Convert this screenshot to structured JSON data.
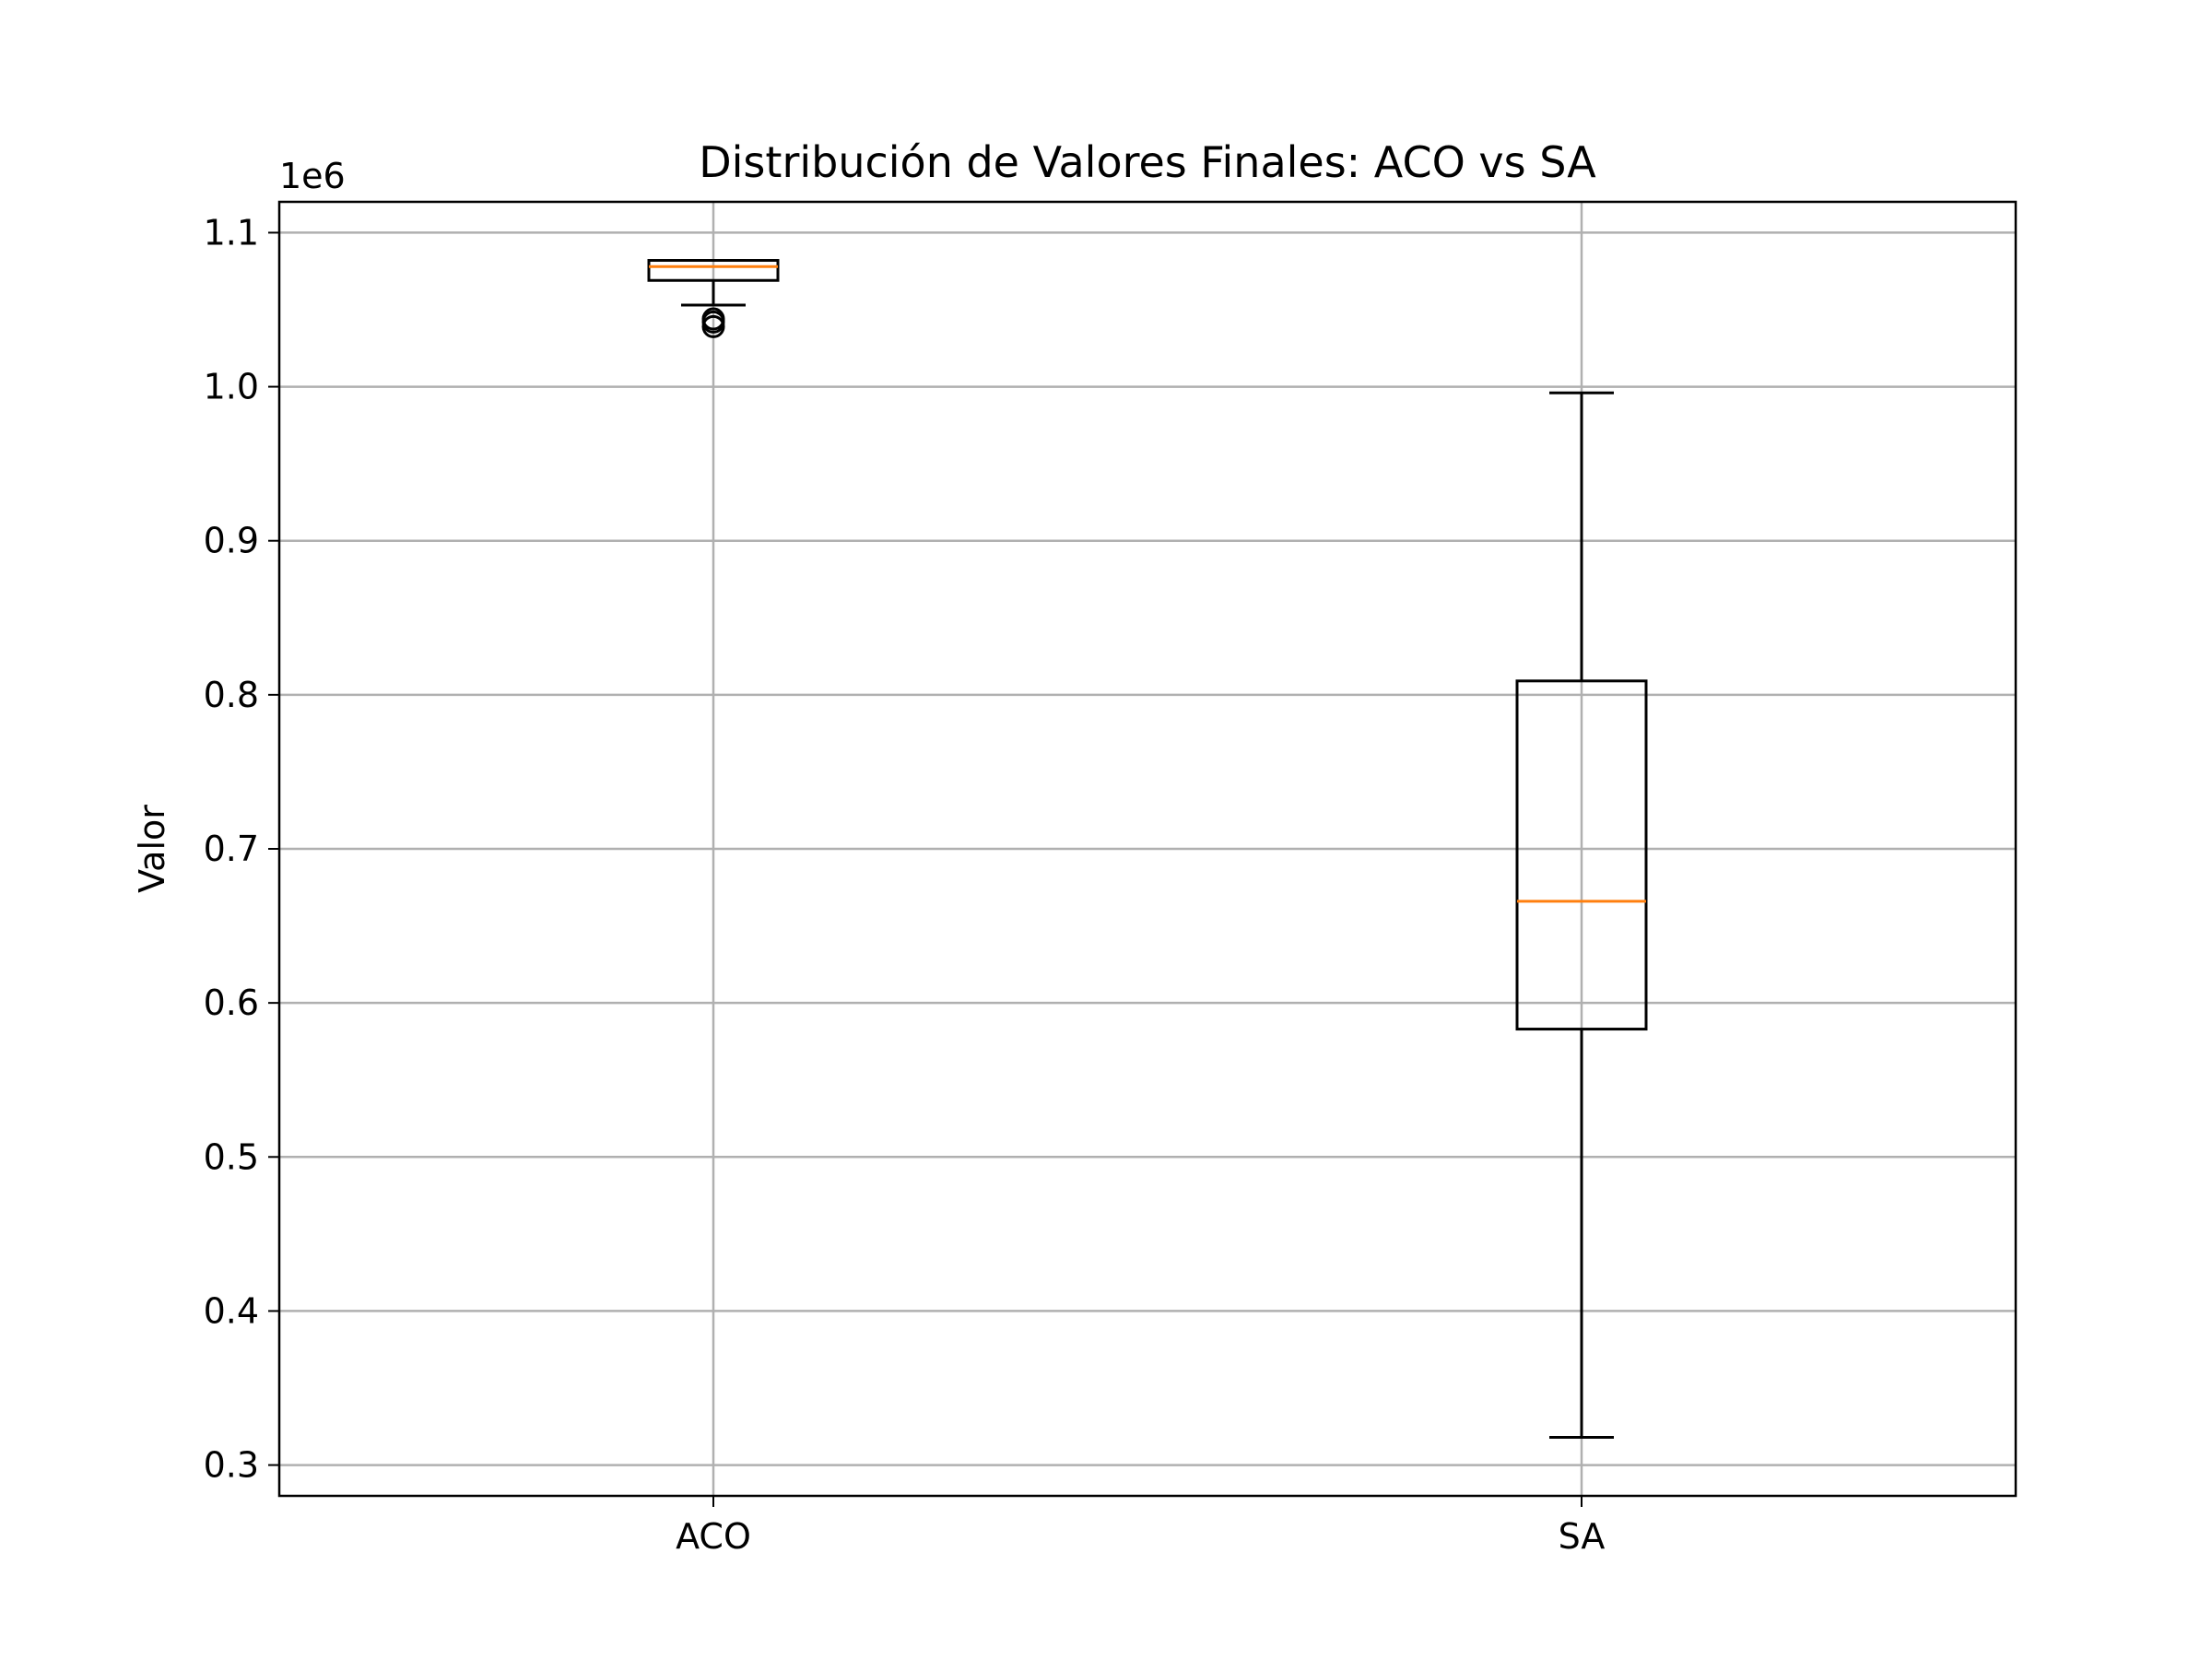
{
  "chart_data": {
    "type": "box",
    "title": "Distribución de Valores Finales: ACO vs SA",
    "xlabel": "",
    "ylabel": "Valor",
    "y_offset_label": "1e6",
    "y_scale_factor": 1000000,
    "ylim": [
      0.28,
      1.12
    ],
    "yticks": [
      0.3,
      0.4,
      0.5,
      0.6,
      0.7,
      0.8,
      0.9,
      1.0,
      1.1
    ],
    "ytick_labels": [
      "0.3",
      "0.4",
      "0.5",
      "0.6",
      "0.7",
      "0.8",
      "0.9",
      "1.0",
      "1.1"
    ],
    "categories": [
      "ACO",
      "SA"
    ],
    "grid": true,
    "colors": {
      "box": "#000000",
      "median": "#ff7f0e",
      "grid": "#b0b0b0",
      "outlier": "#000000"
    },
    "boxes": [
      {
        "name": "ACO",
        "whisker_low": 1.053,
        "q1": 1.069,
        "median": 1.078,
        "q3": 1.082,
        "whisker_high": 1.082,
        "outliers": [
          1.044,
          1.042,
          1.039
        ]
      },
      {
        "name": "SA",
        "whisker_low": 0.318,
        "q1": 0.583,
        "median": 0.666,
        "q3": 0.809,
        "whisker_high": 0.996,
        "outliers": []
      }
    ]
  }
}
